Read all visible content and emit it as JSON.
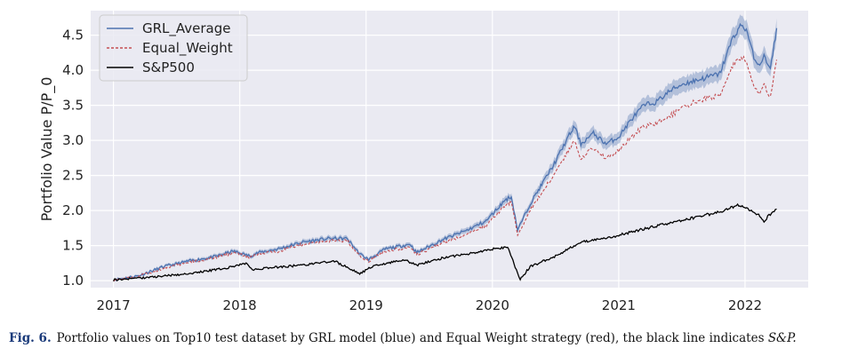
{
  "chart_data": {
    "type": "line",
    "title": "",
    "xlabel": "",
    "ylabel": "Portfolio Value P/P_0",
    "x_ticks": [
      "2017",
      "2018",
      "2019",
      "2020",
      "2021",
      "2022"
    ],
    "y_ticks": [
      "1.0",
      "1.5",
      "2.0",
      "2.5",
      "3.0",
      "3.5",
      "4.0",
      "4.5"
    ],
    "xlim": [
      2016.82,
      2022.5
    ],
    "ylim": [
      0.9,
      4.85
    ],
    "grid": true,
    "legend_position": "top-left",
    "background": "#eaeaf2",
    "series": [
      {
        "name": "GRL_Average",
        "color": "#4c72b0",
        "style": "solid",
        "band": 0.12,
        "x": [
          2017.0,
          2017.2,
          2017.4,
          2017.6,
          2017.8,
          2017.95,
          2018.08,
          2018.15,
          2018.3,
          2018.5,
          2018.7,
          2018.85,
          2018.95,
          2019.02,
          2019.15,
          2019.35,
          2019.4,
          2019.6,
          2019.8,
          2019.95,
          2020.1,
          2020.15,
          2020.2,
          2020.3,
          2020.4,
          2020.5,
          2020.6,
          2020.65,
          2020.7,
          2020.8,
          2020.9,
          2021.0,
          2021.1,
          2021.2,
          2021.3,
          2021.4,
          2021.5,
          2021.6,
          2021.7,
          2021.8,
          2021.9,
          2021.97,
          2022.02,
          2022.05,
          2022.1,
          2022.15,
          2022.2,
          2022.25
        ],
        "y": [
          1.01,
          1.07,
          1.2,
          1.28,
          1.34,
          1.42,
          1.35,
          1.4,
          1.45,
          1.55,
          1.6,
          1.6,
          1.38,
          1.3,
          1.45,
          1.52,
          1.4,
          1.58,
          1.72,
          1.85,
          2.15,
          2.2,
          1.72,
          2.1,
          2.4,
          2.7,
          3.05,
          3.2,
          2.95,
          3.1,
          2.95,
          3.05,
          3.3,
          3.5,
          3.55,
          3.7,
          3.8,
          3.85,
          3.9,
          3.95,
          4.45,
          4.65,
          4.55,
          4.3,
          4.05,
          4.2,
          4.0,
          4.6
        ]
      },
      {
        "name": "Equal_Weight",
        "color": "#c44e52",
        "style": "dashed",
        "x": [
          2017.0,
          2017.2,
          2017.4,
          2017.6,
          2017.8,
          2017.95,
          2018.08,
          2018.15,
          2018.3,
          2018.5,
          2018.7,
          2018.85,
          2018.95,
          2019.02,
          2019.15,
          2019.35,
          2019.4,
          2019.6,
          2019.8,
          2019.95,
          2020.1,
          2020.15,
          2020.2,
          2020.3,
          2020.4,
          2020.5,
          2020.6,
          2020.65,
          2020.7,
          2020.8,
          2020.9,
          2021.0,
          2021.1,
          2021.2,
          2021.3,
          2021.4,
          2021.5,
          2021.6,
          2021.7,
          2021.8,
          2021.9,
          2021.97,
          2022.02,
          2022.05,
          2022.1,
          2022.15,
          2022.2,
          2022.25
        ],
        "y": [
          1.01,
          1.06,
          1.18,
          1.26,
          1.32,
          1.4,
          1.33,
          1.38,
          1.42,
          1.52,
          1.57,
          1.57,
          1.35,
          1.28,
          1.42,
          1.48,
          1.37,
          1.53,
          1.66,
          1.78,
          2.07,
          2.12,
          1.65,
          2.0,
          2.28,
          2.55,
          2.85,
          3.0,
          2.75,
          2.9,
          2.75,
          2.85,
          3.05,
          3.2,
          3.25,
          3.35,
          3.45,
          3.55,
          3.6,
          3.65,
          4.05,
          4.2,
          4.1,
          3.9,
          3.65,
          3.8,
          3.6,
          4.15
        ]
      },
      {
        "name": "S&P500",
        "color": "#000000",
        "style": "solid",
        "x": [
          2017.0,
          2017.3,
          2017.6,
          2017.9,
          2018.05,
          2018.1,
          2018.2,
          2018.5,
          2018.75,
          2018.95,
          2019.05,
          2019.3,
          2019.4,
          2019.6,
          2019.8,
          2020.0,
          2020.12,
          2020.18,
          2020.22,
          2020.3,
          2020.5,
          2020.7,
          2020.9,
          2021.0,
          2021.3,
          2021.6,
          2021.8,
          2021.95,
          2022.05,
          2022.1,
          2022.15,
          2022.2,
          2022.25
        ],
        "y": [
          1.01,
          1.05,
          1.1,
          1.18,
          1.25,
          1.15,
          1.18,
          1.22,
          1.28,
          1.1,
          1.2,
          1.3,
          1.22,
          1.32,
          1.38,
          1.45,
          1.48,
          1.2,
          1.02,
          1.2,
          1.35,
          1.55,
          1.6,
          1.65,
          1.78,
          1.9,
          1.98,
          2.08,
          2.0,
          1.95,
          1.85,
          1.95,
          2.02
        ]
      }
    ]
  },
  "caption": {
    "label": "Fig. 6.",
    "text": "Portfolio values on Top10 test dataset by GRL model (blue) and Equal Weight strategy (red), the black line indicates",
    "symbol": "S&P."
  }
}
